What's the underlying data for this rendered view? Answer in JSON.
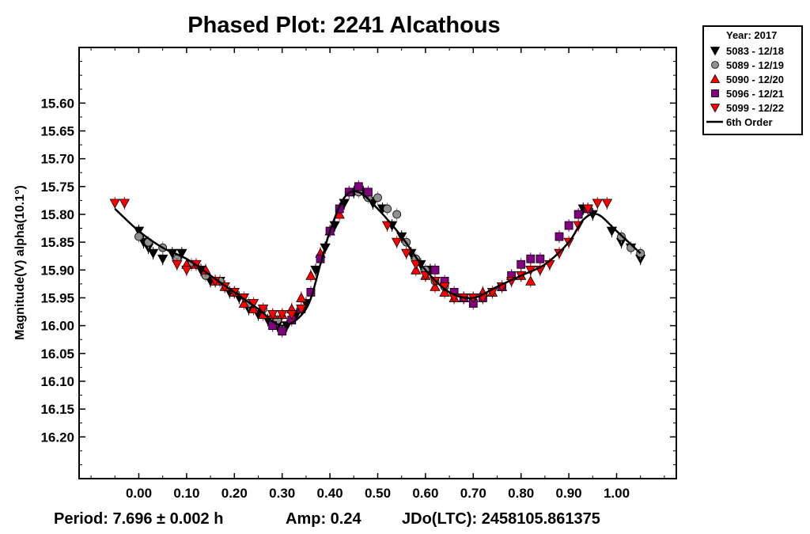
{
  "footer": {
    "period": "Period: 7.696 ± 0.002 h",
    "amp": "Amp: 0.24",
    "jdo": "JDo(LTC): 2458105.861375"
  },
  "chart_data": {
    "type": "scatter",
    "title": "Phased Plot: 2241 Alcathous",
    "xlabel": "",
    "ylabel": "Magnitude(V) alpha(10.1°)",
    "xlim": [
      -0.125,
      1.125
    ],
    "ylim": [
      15.5,
      16.275
    ],
    "y_inverted": true,
    "x_ticks": [
      "0.00",
      "0.10",
      "0.20",
      "0.30",
      "0.40",
      "0.50",
      "0.60",
      "0.70",
      "0.80",
      "0.90",
      "1.00"
    ],
    "y_ticks": [
      "15.60",
      "15.65",
      "15.70",
      "15.75",
      "15.80",
      "15.85",
      "15.90",
      "15.95",
      "16.00",
      "16.05",
      "16.10",
      "16.15",
      "16.20"
    ],
    "legend": {
      "title": "Year: 2017",
      "position": "outside-top-right",
      "entries": [
        "5083 - 12/18",
        "5089 - 12/19",
        "5090 - 12/20",
        "5096 - 12/21",
        "5099 - 12/22",
        "6th Order"
      ]
    },
    "series": [
      {
        "name": "5083 - 12/18",
        "marker": "triangle-down",
        "color": "#000000",
        "x": [
          0.0,
          0.01,
          0.02,
          0.03,
          0.05,
          0.07,
          0.09,
          0.11,
          0.13,
          0.15,
          0.17,
          0.19,
          0.21,
          0.23,
          0.25,
          0.27,
          0.29,
          0.31,
          0.33,
          0.35,
          0.37,
          0.39,
          0.41,
          0.43,
          0.45,
          0.47,
          0.49,
          0.51,
          0.53,
          0.55,
          0.57,
          0.59,
          0.61,
          0.93,
          0.95,
          0.99,
          1.01,
          1.03,
          1.05
        ],
        "y": [
          15.83,
          15.85,
          15.86,
          15.87,
          15.88,
          15.87,
          15.87,
          15.89,
          15.9,
          15.92,
          15.92,
          15.94,
          15.95,
          15.97,
          15.98,
          15.99,
          16.0,
          16.0,
          15.98,
          15.96,
          15.9,
          15.86,
          15.82,
          15.78,
          15.76,
          15.76,
          15.78,
          15.79,
          15.82,
          15.84,
          15.87,
          15.89,
          15.9,
          15.79,
          15.8,
          15.83,
          15.85,
          15.86,
          15.88
        ]
      },
      {
        "name": "5089 - 12/19",
        "marker": "circle",
        "color": "#909090",
        "x": [
          0.0,
          0.02,
          0.05,
          0.08,
          0.11,
          0.14,
          0.17,
          0.2,
          0.23,
          0.26,
          0.29,
          0.44,
          0.46,
          0.48,
          0.5,
          0.52,
          0.54,
          0.56,
          0.58,
          0.6,
          0.62,
          0.64,
          1.01,
          1.03,
          1.05
        ],
        "y": [
          15.84,
          15.85,
          15.86,
          15.88,
          15.89,
          15.91,
          15.92,
          15.94,
          15.96,
          15.97,
          15.99,
          15.76,
          15.76,
          15.77,
          15.77,
          15.79,
          15.8,
          15.85,
          15.88,
          15.9,
          15.92,
          15.93,
          15.84,
          15.86,
          15.87
        ]
      },
      {
        "name": "5090 - 12/20",
        "marker": "triangle-up",
        "color": "#ff0000",
        "x": [
          0.1,
          0.12,
          0.14,
          0.16,
          0.18,
          0.2,
          0.22,
          0.24,
          0.26,
          0.28,
          0.3,
          0.32,
          0.34,
          0.36,
          0.38,
          0.4,
          0.42,
          0.58,
          0.6,
          0.62,
          0.64,
          0.66,
          0.68,
          0.7,
          0.72,
          0.74,
          0.76,
          0.78,
          0.8,
          0.82
        ],
        "y": [
          15.89,
          15.89,
          15.9,
          15.92,
          15.93,
          15.94,
          15.96,
          15.97,
          15.98,
          15.98,
          15.98,
          15.97,
          15.95,
          15.91,
          15.87,
          15.83,
          15.8,
          15.9,
          15.91,
          15.93,
          15.94,
          15.95,
          15.95,
          15.95,
          15.94,
          15.94,
          15.93,
          15.91,
          15.91,
          15.92
        ]
      },
      {
        "name": "5096 - 12/21",
        "marker": "square",
        "color": "#800080",
        "x": [
          0.28,
          0.3,
          0.32,
          0.34,
          0.36,
          0.38,
          0.4,
          0.42,
          0.44,
          0.46,
          0.48,
          0.62,
          0.64,
          0.66,
          0.68,
          0.7,
          0.72,
          0.76,
          0.78,
          0.8,
          0.82,
          0.84,
          0.88,
          0.9,
          0.92,
          0.94
        ],
        "y": [
          16.0,
          16.01,
          15.99,
          15.97,
          15.94,
          15.88,
          15.83,
          15.79,
          15.76,
          15.75,
          15.76,
          15.9,
          15.92,
          15.94,
          15.95,
          15.96,
          15.95,
          15.93,
          15.91,
          15.89,
          15.88,
          15.88,
          15.84,
          15.82,
          15.8,
          15.79
        ]
      },
      {
        "name": "5099 - 12/22",
        "marker": "triangle-down",
        "color": "#ff0000",
        "x": [
          -0.05,
          -0.03,
          0.08,
          0.1,
          0.12,
          0.16,
          0.18,
          0.2,
          0.22,
          0.24,
          0.26,
          0.28,
          0.3,
          0.32,
          0.34,
          0.52,
          0.54,
          0.56,
          0.58,
          0.6,
          0.62,
          0.64,
          0.66,
          0.68,
          0.7,
          0.72,
          0.74,
          0.76,
          0.78,
          0.8,
          0.82,
          0.84,
          0.86,
          0.88,
          0.9,
          0.92,
          0.94,
          0.96,
          0.98
        ],
        "y": [
          15.78,
          15.78,
          15.89,
          15.9,
          15.89,
          15.92,
          15.93,
          15.94,
          15.95,
          15.96,
          15.97,
          15.98,
          15.98,
          15.98,
          15.97,
          15.82,
          15.85,
          15.87,
          15.89,
          15.91,
          15.92,
          15.93,
          15.95,
          15.95,
          15.95,
          15.95,
          15.94,
          15.93,
          15.92,
          15.91,
          15.9,
          15.9,
          15.89,
          15.87,
          15.85,
          15.82,
          15.79,
          15.78,
          15.78
        ]
      }
    ],
    "fit": {
      "name": "6th Order",
      "x": [
        -0.05,
        0.0,
        0.05,
        0.1,
        0.15,
        0.2,
        0.25,
        0.3,
        0.35,
        0.38,
        0.4,
        0.43,
        0.46,
        0.5,
        0.55,
        0.6,
        0.65,
        0.7,
        0.75,
        0.8,
        0.85,
        0.9,
        0.93,
        0.96,
        1.0,
        1.05
      ],
      "y": [
        15.79,
        15.83,
        15.86,
        15.88,
        15.91,
        15.94,
        15.97,
        16.0,
        15.97,
        15.89,
        15.83,
        15.77,
        15.76,
        15.79,
        15.84,
        15.9,
        15.94,
        15.95,
        15.93,
        15.91,
        15.89,
        15.85,
        15.81,
        15.8,
        15.83,
        15.87
      ]
    }
  }
}
